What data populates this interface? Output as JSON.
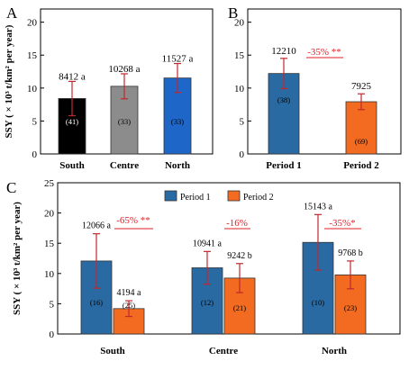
{
  "figure_colors": {
    "black": "#000000",
    "gray": "#8c8c8c",
    "blue": "#1f66c9",
    "period1": "#2a6aa2",
    "period2": "#f26b21",
    "error_bar": "#c0282e",
    "annotation": "#e21f26"
  },
  "chart_data": [
    {
      "panel": "A",
      "type": "bar",
      "categories": [
        "South",
        "Centre",
        "North"
      ],
      "values": [
        8412,
        10268,
        11527
      ],
      "error": [
        2600,
        1900,
        2200
      ],
      "value_labels": [
        "8412 a",
        "10268 a",
        "11527 a"
      ],
      "count_labels": [
        "(41)",
        "(33)",
        "(33)"
      ],
      "bar_colors": [
        "#000000",
        "#8c8c8c",
        "#1f66c9"
      ],
      "ylabel": "SSY ( × 10³ t/km² per year)",
      "yticks": [
        "0",
        "5",
        "10",
        "15",
        "20"
      ],
      "ylim": [
        0,
        22000
      ],
      "grid": false
    },
    {
      "panel": "B",
      "type": "bar",
      "categories": [
        "Period 1",
        "Period 2"
      ],
      "values": [
        12210,
        7925
      ],
      "error": [
        2300,
        1200
      ],
      "value_labels": [
        "12210",
        "7925"
      ],
      "count_labels": [
        "(38)",
        "(69)"
      ],
      "bar_colors": [
        "#2a6aa2",
        "#f26b21"
      ],
      "annotation": "-35% **",
      "yticks": [
        "0",
        "5",
        "10",
        "15",
        "20"
      ],
      "ylim": [
        0,
        22000
      ],
      "grid": false
    },
    {
      "panel": "C",
      "type": "bar",
      "categories": [
        "South",
        "Centre",
        "North"
      ],
      "series": [
        {
          "name": "Period 1",
          "values": [
            12066,
            10941,
            15143
          ],
          "error": [
            4500,
            2700,
            4600
          ],
          "value_labels": [
            "12066 a",
            "10941 a",
            "15143 a"
          ],
          "count_labels": [
            "(16)",
            "(12)",
            "(10)"
          ],
          "color": "#2a6aa2"
        },
        {
          "name": "Period 2",
          "values": [
            4194,
            9242,
            9768
          ],
          "error": [
            1300,
            2400,
            2300
          ],
          "value_labels": [
            "4194 a",
            "9242 b",
            "9768 b"
          ],
          "count_labels": [
            "(25)",
            "(21)",
            "(23)"
          ],
          "color": "#f26b21"
        }
      ],
      "annotations": [
        "-65% **",
        "-16%",
        "-35%*"
      ],
      "ylabel": "SSY ( × 10³ t/km² per year)",
      "yticks": [
        "0",
        "5",
        "10",
        "15",
        "20",
        "25"
      ],
      "ylim": [
        0,
        25000
      ],
      "legend": "top-center",
      "grid": false
    }
  ]
}
